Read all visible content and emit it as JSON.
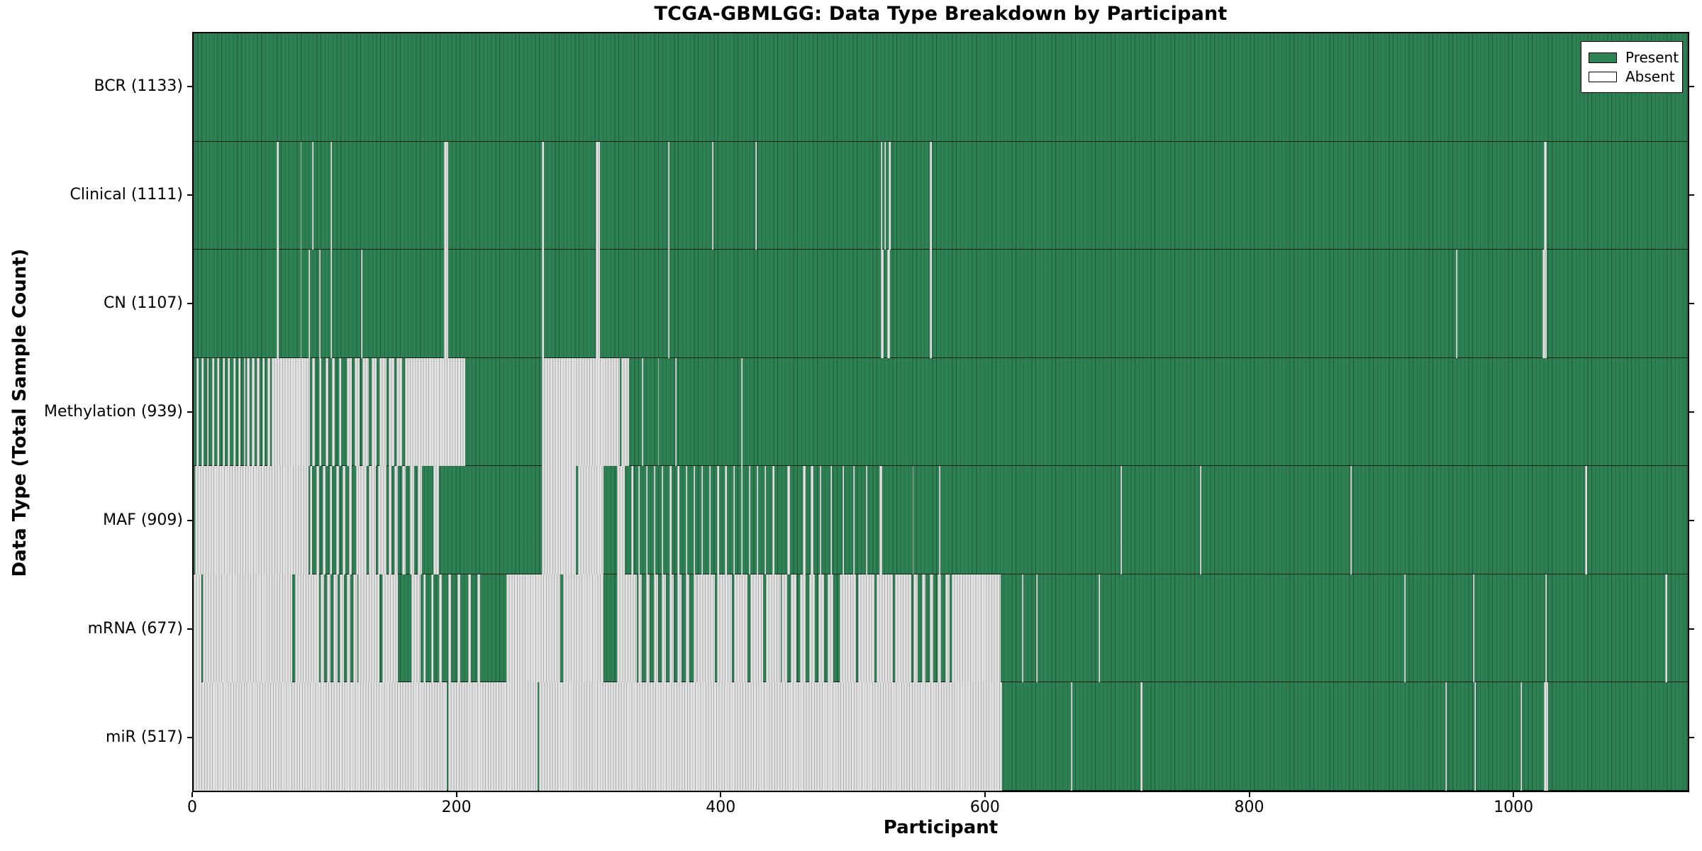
{
  "figure": {
    "title": "TCGA-GBMLGG: Data Type Breakdown by Participant",
    "xlabel": "Participant",
    "ylabel": "Data Type (Total Sample Count)"
  },
  "legend": {
    "entries": [
      {
        "label": "Present",
        "swatch_color": "#2F8456"
      },
      {
        "label": "Absent",
        "swatch_color": "#FFFFFF"
      }
    ]
  },
  "chart_data": {
    "type": "heatmap",
    "title": "TCGA-GBMLGG: Data Type Breakdown by Participant",
    "xlabel": "Participant",
    "ylabel": "Data Type (Total Sample Count)",
    "x_ticks": [
      0,
      200,
      400,
      600,
      800,
      1000
    ],
    "xlim": [
      0,
      1133
    ],
    "grid": false,
    "legend_position": "upper right",
    "encoding": "each row is a data type; green cell = sample present for that participant, white/gray cell = absent; absent_intervals are [start,end) participant-index ranges",
    "colors": {
      "present": "#2F8456",
      "absent": "#E2E2E2"
    },
    "rows": [
      {
        "name": "BCR",
        "label": "BCR (1133)",
        "total_samples": 1133,
        "absent_intervals": []
      },
      {
        "name": "Clinical",
        "label": "Clinical (1111)",
        "total_samples": 1111,
        "absent_intervals": [
          [
            63,
            64.5
          ],
          [
            81,
            82
          ],
          [
            90,
            91
          ],
          [
            104,
            105
          ],
          [
            190,
            193
          ],
          [
            264,
            265.5
          ],
          [
            305,
            308
          ],
          [
            360,
            361
          ],
          [
            393,
            394
          ],
          [
            426,
            427
          ],
          [
            521,
            522
          ],
          [
            524,
            525
          ],
          [
            527,
            528.5
          ],
          [
            558,
            560
          ],
          [
            1024,
            1026
          ]
        ]
      },
      {
        "name": "CN",
        "label": "CN (1107)",
        "total_samples": 1107,
        "absent_intervals": [
          [
            63,
            64.5
          ],
          [
            81,
            82
          ],
          [
            87,
            88
          ],
          [
            95,
            96
          ],
          [
            104,
            105
          ],
          [
            127,
            128
          ],
          [
            190,
            193
          ],
          [
            264,
            265.5
          ],
          [
            305,
            308
          ],
          [
            360,
            361
          ],
          [
            521,
            523
          ],
          [
            526,
            528
          ],
          [
            558,
            560
          ],
          [
            957,
            958
          ],
          [
            1023,
            1026
          ]
        ]
      },
      {
        "name": "Methylation",
        "label": "Methylation (939)",
        "total_samples": 939,
        "absent_intervals": [
          [
            2,
            3.5
          ],
          [
            6,
            7.5
          ],
          [
            10,
            11.5
          ],
          [
            14,
            15.5
          ],
          [
            18,
            19.5
          ],
          [
            22,
            23.5
          ],
          [
            26,
            27.5
          ],
          [
            30,
            31.5
          ],
          [
            34,
            35.5
          ],
          [
            38,
            39.5
          ],
          [
            40.5,
            42.5
          ],
          [
            44,
            46
          ],
          [
            48,
            50
          ],
          [
            52,
            54
          ],
          [
            56,
            58
          ],
          [
            59,
            88
          ],
          [
            90,
            92
          ],
          [
            95,
            97
          ],
          [
            100,
            102
          ],
          [
            105,
            107
          ],
          [
            110,
            112
          ],
          [
            116,
            120
          ],
          [
            122,
            126
          ],
          [
            128,
            133
          ],
          [
            135,
            139
          ],
          [
            141,
            146
          ],
          [
            148,
            152
          ],
          [
            154,
            158
          ],
          [
            160,
            164
          ],
          [
            164,
            206
          ],
          [
            264,
            323
          ],
          [
            324.5,
            330
          ],
          [
            340,
            341
          ],
          [
            352,
            353
          ],
          [
            365,
            366
          ],
          [
            415,
            416
          ]
        ]
      },
      {
        "name": "MAF",
        "label": "MAF (909)",
        "total_samples": 909,
        "absent_intervals": [
          [
            1,
            87
          ],
          [
            88,
            90
          ],
          [
            93,
            95
          ],
          [
            98,
            100
          ],
          [
            103,
            105
          ],
          [
            108,
            110
          ],
          [
            113,
            115
          ],
          [
            118,
            120
          ],
          [
            123,
            125
          ],
          [
            125,
            131
          ],
          [
            133,
            138
          ],
          [
            140,
            146
          ],
          [
            148,
            150
          ],
          [
            152,
            155
          ],
          [
            158,
            161
          ],
          [
            164,
            167
          ],
          [
            170,
            173
          ],
          [
            182,
            186
          ],
          [
            264,
            290
          ],
          [
            291.5,
            311
          ],
          [
            321,
            327
          ],
          [
            332,
            333.2
          ],
          [
            337,
            338.2
          ],
          [
            343,
            344.2
          ],
          [
            349,
            350.2
          ],
          [
            355,
            356.2
          ],
          [
            361,
            362.2
          ],
          [
            367,
            368.2
          ],
          [
            373,
            374.2
          ],
          [
            379,
            380.2
          ],
          [
            385,
            386.2
          ],
          [
            391,
            392.2
          ],
          [
            397,
            398.2
          ],
          [
            403,
            404.2
          ],
          [
            409,
            410.2
          ],
          [
            415,
            416.2
          ],
          [
            421,
            422.2
          ],
          [
            427,
            428.2
          ],
          [
            433,
            434.2
          ],
          [
            439,
            440.2
          ],
          [
            450,
            452
          ],
          [
            462,
            464
          ],
          [
            468,
            470
          ],
          [
            475,
            476
          ],
          [
            483,
            484
          ],
          [
            492,
            493
          ],
          [
            500,
            501
          ],
          [
            510,
            511
          ],
          [
            520,
            522
          ],
          [
            545,
            546
          ],
          [
            565,
            566
          ],
          [
            703,
            704
          ],
          [
            763,
            764
          ],
          [
            877,
            878
          ],
          [
            1055,
            1056.5
          ]
        ]
      },
      {
        "name": "mRNA",
        "label": "mRNA (677)",
        "total_samples": 677,
        "absent_intervals": [
          [
            0,
            6
          ],
          [
            7,
            75
          ],
          [
            77,
            95
          ],
          [
            96,
            99
          ],
          [
            101,
            104
          ],
          [
            106,
            109
          ],
          [
            111,
            114
          ],
          [
            116,
            119
          ],
          [
            121,
            124
          ],
          [
            125,
            141
          ],
          [
            143,
            155
          ],
          [
            165,
            172
          ],
          [
            174,
            176
          ],
          [
            180,
            182
          ],
          [
            186,
            188
          ],
          [
            193,
            195
          ],
          [
            200,
            202
          ],
          [
            208,
            210
          ],
          [
            215,
            217
          ],
          [
            237,
            278
          ],
          [
            280,
            311
          ],
          [
            321,
            336
          ],
          [
            337,
            340
          ],
          [
            343,
            346
          ],
          [
            349,
            352
          ],
          [
            355,
            358
          ],
          [
            361,
            364
          ],
          [
            367,
            370
          ],
          [
            373,
            376
          ],
          [
            379,
            382
          ],
          [
            382,
            395
          ],
          [
            397,
            408
          ],
          [
            410,
            420
          ],
          [
            422,
            432
          ],
          [
            434,
            445
          ],
          [
            446,
            450
          ],
          [
            453,
            457
          ],
          [
            460,
            464
          ],
          [
            467,
            471
          ],
          [
            474,
            478
          ],
          [
            481,
            485
          ],
          [
            490,
            502
          ],
          [
            504,
            516
          ],
          [
            518,
            530
          ],
          [
            532,
            544
          ],
          [
            546,
            549
          ],
          [
            552,
            555
          ],
          [
            558,
            561
          ],
          [
            564,
            567
          ],
          [
            570,
            573
          ],
          [
            575,
            612
          ],
          [
            628,
            629
          ],
          [
            639,
            640
          ],
          [
            686,
            687
          ],
          [
            918,
            919
          ],
          [
            970,
            971
          ],
          [
            1025,
            1026
          ],
          [
            1116,
            1117.5
          ]
        ]
      },
      {
        "name": "miR",
        "label": "miR (517)",
        "total_samples": 517,
        "absent_intervals": [
          [
            0,
            192
          ],
          [
            193,
            261
          ],
          [
            262,
            613
          ],
          [
            665,
            666.5
          ],
          [
            718,
            719.5
          ],
          [
            949,
            950
          ],
          [
            971,
            972
          ],
          [
            1006,
            1007
          ],
          [
            1024,
            1027
          ]
        ]
      }
    ]
  }
}
